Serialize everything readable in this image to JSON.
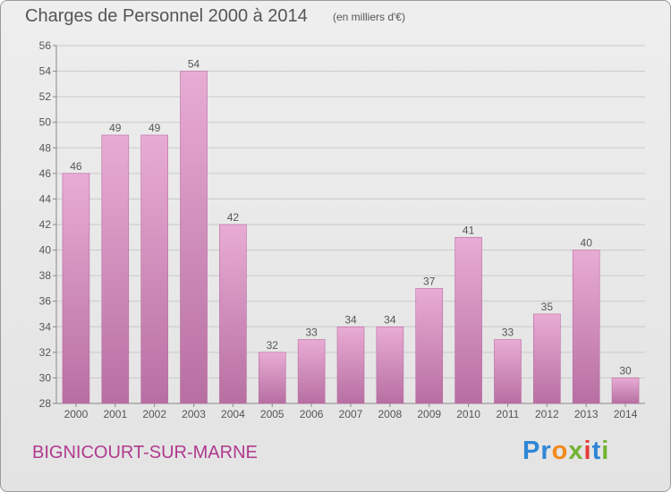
{
  "header": {
    "title": "Charges de Personnel 2000 à 2014",
    "subtitle": "(en milliers d'€)"
  },
  "footer": {
    "place": "BIGNICOURT-SUR-MARNE",
    "brand": [
      "P",
      "r",
      "o",
      "x",
      "i",
      "t",
      "i"
    ]
  },
  "colors": {
    "bar_fill": "#dc98c4",
    "bar_stroke": "#bb6aa2",
    "axis": "#888888",
    "grid": "#c9c9c9",
    "text": "#555555",
    "place": "#b03a8e"
  },
  "chart_data": {
    "type": "bar",
    "title": "Charges de Personnel 2000 à 2014",
    "subtitle": "(en milliers d'€)",
    "categories": [
      "2000",
      "2001",
      "2002",
      "2003",
      "2004",
      "2005",
      "2006",
      "2007",
      "2008",
      "2009",
      "2010",
      "2011",
      "2012",
      "2013",
      "2014"
    ],
    "values": [
      46,
      49,
      49,
      54,
      42,
      32,
      33,
      34,
      34,
      37,
      41,
      33,
      35,
      40,
      30
    ],
    "yticks": [
      28,
      30,
      32,
      34,
      36,
      38,
      40,
      42,
      44,
      46,
      48,
      50,
      52,
      54,
      56
    ],
    "ylim": [
      28,
      56
    ],
    "grid": true
  }
}
